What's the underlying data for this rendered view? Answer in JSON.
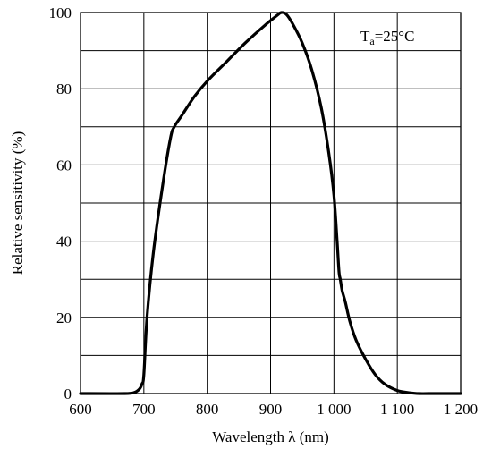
{
  "chart_data": {
    "type": "line",
    "title": "",
    "xlabel": "Wavelength λ (nm)",
    "ylabel": "Relative sensitivity (%)",
    "xlim": [
      600,
      1200
    ],
    "ylim": [
      0,
      100
    ],
    "x_ticks": [
      600,
      700,
      800,
      900,
      1000,
      1100,
      1200
    ],
    "x_tick_labels": [
      "600",
      "700",
      "800",
      "900",
      "1 000",
      "1 100",
      "1 200"
    ],
    "y_ticks": [
      0,
      20,
      40,
      60,
      80,
      100
    ],
    "y_tick_labels": [
      "0",
      "20",
      "40",
      "60",
      "80",
      "100"
    ],
    "x_grid_step": 100,
    "y_grid_step": 10,
    "grid": true,
    "annotation": {
      "main": "T",
      "sub": "a",
      "rest": "=25°C",
      "position": "top-right"
    },
    "series": [
      {
        "x": [
          600,
          670,
          685,
          693,
          697,
          700,
          705,
          715,
          730,
          742,
          748,
          760,
          780,
          800,
          830,
          860,
          890,
          910,
          917,
          925,
          935,
          950,
          965,
          980,
          992,
          1000,
          1005,
          1008,
          1010,
          1013,
          1018,
          1025,
          1035,
          1050,
          1065,
          1080,
          1100,
          1120,
          1135,
          1150,
          1200
        ],
        "y": [
          0,
          0,
          0.3,
          1.2,
          2.5,
          5,
          20,
          37,
          55,
          67,
          70,
          73,
          78,
          82,
          87,
          92,
          96.5,
          99.2,
          100,
          99.5,
          97,
          92,
          85,
          75,
          63,
          52,
          40,
          32,
          30,
          27,
          24,
          19,
          14,
          9,
          5,
          2.5,
          0.8,
          0.2,
          0,
          0,
          0
        ]
      }
    ]
  }
}
